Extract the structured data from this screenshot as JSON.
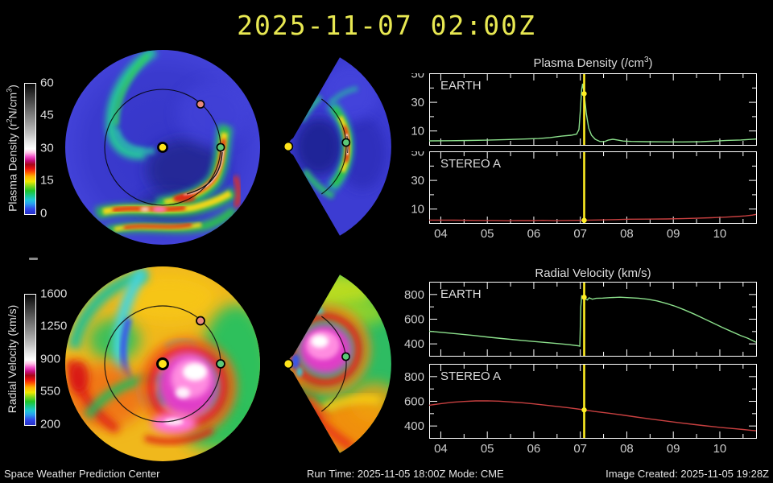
{
  "title": "2025-11-07 02:00Z",
  "colors": {
    "title_yellow": "#e8e852",
    "earth_series_green": "#8ce08c",
    "stereo_series_red": "#c84040",
    "time_marker_yellow": "#ffee22"
  },
  "colorbars": {
    "density": {
      "label_pre": "Plasma Density (r",
      "label_sup1": "2",
      "label_mid": "N/cm",
      "label_sup2": "3",
      "label_post": ")",
      "ticks": [
        "60",
        "45",
        "30",
        "15",
        "0"
      ]
    },
    "velocity": {
      "label": "Radial Velocity (km/s)",
      "ticks": [
        "1600",
        "1250",
        "900",
        "550",
        "200"
      ]
    }
  },
  "maps": {
    "markers": {
      "sun": "#ffe41a",
      "earth": "#5cc878",
      "stereo_a": "#e8897b"
    }
  },
  "chart_data": [
    {
      "type": "line",
      "title_pre": "Plasma Density (/cm",
      "title_sup": "3",
      "title_post": ")",
      "x_range": [
        3.75,
        10.78
      ],
      "x_major_ticks": [
        4,
        5,
        6,
        7,
        8,
        9,
        10
      ],
      "x_tick_labels": [
        "04",
        "05",
        "06",
        "07",
        "08",
        "09",
        "10"
      ],
      "marker_x": 7.083,
      "marker_color": "#ffee22",
      "legend_position": "inside-top-left",
      "grid": false,
      "panels": [
        {
          "label": "EARTH",
          "color": "#8ce08c",
          "y_range": [
            0,
            50
          ],
          "y_ticks": [
            10,
            30,
            50
          ],
          "y_minor_ticks": [
            20,
            40
          ],
          "marker_y": 36,
          "show_x_labels": false,
          "points": [
            [
              3.75,
              3.1
            ],
            [
              4.2,
              3.2
            ],
            [
              4.6,
              3.35
            ],
            [
              5.0,
              3.6
            ],
            [
              5.4,
              4.0
            ],
            [
              5.8,
              4.4
            ],
            [
              6.1,
              4.7
            ],
            [
              6.35,
              5.4
            ],
            [
              6.6,
              6.4
            ],
            [
              6.8,
              7.0
            ],
            [
              6.92,
              7.8
            ],
            [
              6.97,
              11
            ],
            [
              7.0,
              24
            ],
            [
              7.03,
              39
            ],
            [
              7.05,
              43
            ],
            [
              7.09,
              34
            ],
            [
              7.13,
              22
            ],
            [
              7.18,
              12
            ],
            [
              7.24,
              7
            ],
            [
              7.32,
              4.2
            ],
            [
              7.42,
              2.7
            ],
            [
              7.52,
              2.6
            ],
            [
              7.6,
              3.6
            ],
            [
              7.7,
              4.2
            ],
            [
              7.8,
              3.7
            ],
            [
              7.92,
              3.0
            ],
            [
              8.1,
              2.7
            ],
            [
              8.4,
              2.5
            ],
            [
              8.8,
              2.4
            ],
            [
              9.2,
              2.35
            ],
            [
              9.6,
              2.5
            ],
            [
              9.9,
              3.0
            ],
            [
              10.15,
              3.4
            ],
            [
              10.45,
              3.7
            ],
            [
              10.78,
              4.4
            ]
          ]
        },
        {
          "label": "STEREO A",
          "color": "#c84040",
          "y_range": [
            0,
            50
          ],
          "y_ticks": [
            10,
            30,
            50
          ],
          "y_minor_ticks": [
            20,
            40
          ],
          "marker_y": 2.2,
          "show_x_labels": true,
          "points": [
            [
              3.75,
              2.3
            ],
            [
              4.3,
              2.25
            ],
            [
              4.8,
              2.1
            ],
            [
              5.2,
              2.0
            ],
            [
              5.45,
              1.85
            ],
            [
              5.65,
              2.05
            ],
            [
              5.95,
              1.95
            ],
            [
              6.2,
              2.15
            ],
            [
              6.45,
              1.9
            ],
            [
              6.75,
              2.1
            ],
            [
              7.08,
              2.2
            ],
            [
              7.45,
              2.4
            ],
            [
              7.75,
              2.65
            ],
            [
              8.05,
              2.9
            ],
            [
              8.45,
              3.0
            ],
            [
              8.85,
              3.1
            ],
            [
              9.2,
              3.3
            ],
            [
              9.5,
              3.6
            ],
            [
              9.8,
              3.95
            ],
            [
              10.1,
              4.35
            ],
            [
              10.35,
              4.75
            ],
            [
              10.55,
              5.2
            ],
            [
              10.7,
              5.8
            ],
            [
              10.78,
              6.3
            ]
          ]
        }
      ]
    },
    {
      "type": "line",
      "title": "Radial Velocity (km/s)",
      "x_range": [
        3.75,
        10.78
      ],
      "x_major_ticks": [
        4,
        5,
        6,
        7,
        8,
        9,
        10
      ],
      "x_tick_labels": [
        "04",
        "05",
        "06",
        "07",
        "08",
        "09",
        "10"
      ],
      "marker_x": 7.083,
      "marker_color": "#ffee22",
      "legend_position": "inside-top-left",
      "grid": false,
      "panels": [
        {
          "label": "EARTH",
          "color": "#8ce08c",
          "y_range": [
            300,
            900
          ],
          "y_ticks": [
            400,
            600,
            800
          ],
          "y_minor_ticks": [
            500,
            700
          ],
          "marker_y": 778,
          "show_x_labels": false,
          "points": [
            [
              3.75,
              503
            ],
            [
              4.05,
              492
            ],
            [
              4.35,
              481
            ],
            [
              4.7,
              468
            ],
            [
              5.05,
              453
            ],
            [
              5.4,
              440
            ],
            [
              5.75,
              428
            ],
            [
              6.1,
              416
            ],
            [
              6.45,
              405
            ],
            [
              6.75,
              394
            ],
            [
              6.95,
              385
            ],
            [
              6.99,
              381
            ],
            [
              7.01,
              700
            ],
            [
              7.03,
              789
            ],
            [
              7.07,
              783
            ],
            [
              7.11,
              763
            ],
            [
              7.15,
              756
            ],
            [
              7.19,
              773
            ],
            [
              7.26,
              762
            ],
            [
              7.34,
              769
            ],
            [
              7.48,
              771
            ],
            [
              7.65,
              775
            ],
            [
              7.85,
              778
            ],
            [
              8.05,
              774
            ],
            [
              8.25,
              770
            ],
            [
              8.45,
              762
            ],
            [
              8.65,
              748
            ],
            [
              8.85,
              728
            ],
            [
              9.05,
              704
            ],
            [
              9.25,
              674
            ],
            [
              9.45,
              641
            ],
            [
              9.65,
              606
            ],
            [
              9.85,
              570
            ],
            [
              10.05,
              534
            ],
            [
              10.25,
              500
            ],
            [
              10.45,
              467
            ],
            [
              10.6,
              446
            ],
            [
              10.72,
              424
            ],
            [
              10.78,
              412
            ]
          ]
        },
        {
          "label": "STEREO A",
          "color": "#c84040",
          "y_range": [
            300,
            900
          ],
          "y_ticks": [
            400,
            600,
            800
          ],
          "y_minor_ticks": [
            500,
            700
          ],
          "marker_y": 530,
          "show_x_labels": true,
          "points": [
            [
              3.75,
              568
            ],
            [
              4.0,
              581
            ],
            [
              4.25,
              592
            ],
            [
              4.5,
              599
            ],
            [
              4.75,
              603
            ],
            [
              5.0,
              604
            ],
            [
              5.25,
              601
            ],
            [
              5.5,
              595
            ],
            [
              5.75,
              588
            ],
            [
              6.0,
              579
            ],
            [
              6.25,
              569
            ],
            [
              6.5,
              558
            ],
            [
              6.75,
              547
            ],
            [
              7.0,
              535
            ],
            [
              7.08,
              530
            ],
            [
              7.3,
              518
            ],
            [
              7.6,
              504
            ],
            [
              7.9,
              489
            ],
            [
              8.2,
              473
            ],
            [
              8.5,
              457
            ],
            [
              8.8,
              442
            ],
            [
              9.1,
              428
            ],
            [
              9.4,
              414
            ],
            [
              9.7,
              401
            ],
            [
              10.0,
              389
            ],
            [
              10.3,
              379
            ],
            [
              10.5,
              372
            ],
            [
              10.65,
              366
            ],
            [
              10.78,
              361
            ]
          ]
        }
      ]
    }
  ],
  "footer": {
    "left": "Space Weather Prediction Center",
    "center": "Run Time: 2025-11-05 18:00Z  Mode: CME",
    "right": "Image Created: 2025-11-05 19:28Z"
  }
}
